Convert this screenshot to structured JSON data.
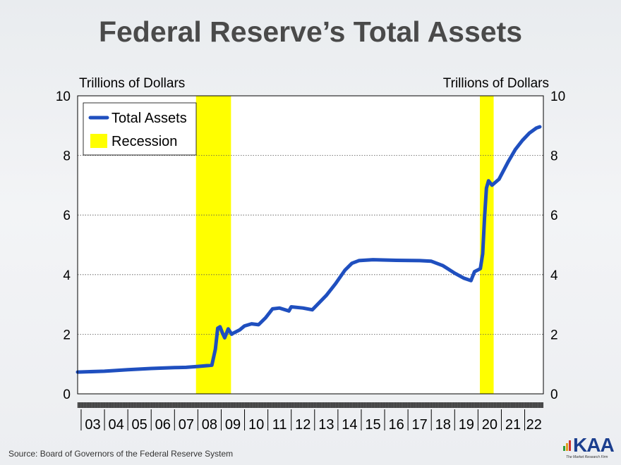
{
  "title": "Federal Reserve’s Total Assets",
  "source": "Source: Board of Governors of the Federal Reserve System",
  "logo": {
    "text": "KAA",
    "tagline": "The Market Research Firm",
    "colors": [
      "#2e9d3a",
      "#e0a020",
      "#d0312d",
      "#1b3e8e"
    ]
  },
  "chart_data": {
    "type": "line",
    "title": "",
    "ylabel_left": "Trillions of Dollars",
    "ylabel_right": "Trillions of Dollars",
    "ylim": [
      0,
      10
    ],
    "yticks": [
      0,
      2,
      4,
      6,
      8,
      10
    ],
    "xlim": [
      2002.85,
      2022.8
    ],
    "xtick_labels": [
      "03",
      "04",
      "05",
      "06",
      "07",
      "08",
      "09",
      "10",
      "11",
      "12",
      "13",
      "14",
      "15",
      "16",
      "17",
      "18",
      "19",
      "20",
      "21",
      "22"
    ],
    "grid": "horizontal dotted",
    "legend": {
      "placement": "top-left",
      "entries": [
        "Total Assets",
        "Recession"
      ]
    },
    "colors": {
      "line": "#1f4fbf",
      "recession": "#ffff00"
    },
    "recessions": [
      [
        2007.92,
        2009.42
      ],
      [
        2020.08,
        2020.67
      ]
    ],
    "series": [
      {
        "name": "Total Assets",
        "x": [
          2002.85,
          2004.0,
          2005.0,
          2006.0,
          2007.0,
          2007.5,
          2008.0,
          2008.3,
          2008.6,
          2008.75,
          2008.85,
          2008.95,
          2009.05,
          2009.15,
          2009.3,
          2009.45,
          2009.55,
          2009.8,
          2010.0,
          2010.3,
          2010.6,
          2010.9,
          2011.2,
          2011.5,
          2011.9,
          2012.0,
          2012.5,
          2012.9,
          2013.5,
          2013.9,
          2014.3,
          2014.6,
          2014.9,
          2015.5,
          2016.5,
          2017.5,
          2018.0,
          2018.5,
          2019.0,
          2019.4,
          2019.7,
          2019.85,
          2020.1,
          2020.2,
          2020.28,
          2020.36,
          2020.45,
          2020.6,
          2020.9,
          2021.3,
          2021.6,
          2021.9,
          2022.2,
          2022.5,
          2022.65
        ],
        "values": [
          0.73,
          0.76,
          0.81,
          0.85,
          0.88,
          0.89,
          0.92,
          0.94,
          0.96,
          1.5,
          2.2,
          2.25,
          2.05,
          1.88,
          2.18,
          2.0,
          2.05,
          2.15,
          2.28,
          2.35,
          2.32,
          2.55,
          2.85,
          2.88,
          2.78,
          2.92,
          2.88,
          2.82,
          3.3,
          3.7,
          4.15,
          4.38,
          4.47,
          4.5,
          4.48,
          4.47,
          4.45,
          4.3,
          4.05,
          3.88,
          3.8,
          4.1,
          4.2,
          4.7,
          5.9,
          6.9,
          7.15,
          7.0,
          7.2,
          7.8,
          8.2,
          8.5,
          8.75,
          8.92,
          8.96
        ]
      }
    ]
  }
}
